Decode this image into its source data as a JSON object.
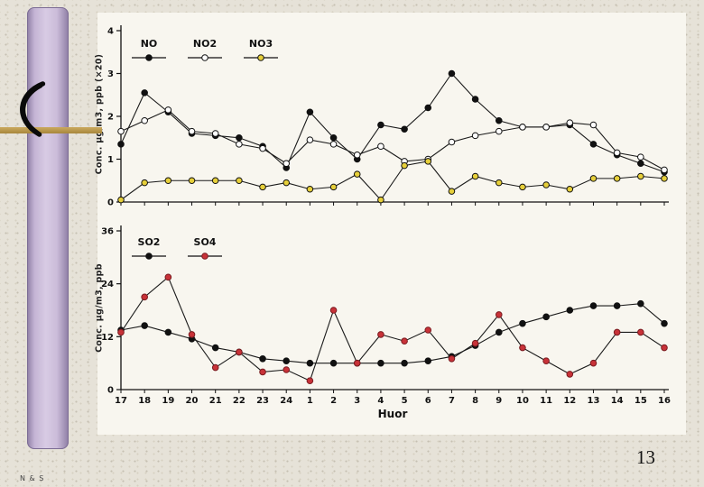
{
  "page": {
    "page_number": "13",
    "footer_left": "N & S"
  },
  "colors": {
    "slide_background": "#e6e2d8",
    "ribbon_lavender": "#cbbcd9",
    "gold_bar": "#b2904a",
    "no3_yellow": "#e6cf3a",
    "so4_red": "#c83238",
    "line_black": "#1a1a1a"
  },
  "chart_data": [
    {
      "type": "line",
      "title": "",
      "ylabel": "Conc. μg/m3, ppb (×20)",
      "xlabel": "",
      "ylim": [
        0,
        4
      ],
      "yticks": [
        0,
        1,
        2,
        3,
        4
      ],
      "grid": false,
      "legend_position": "top-left-inside",
      "categories": [
        "17",
        "18",
        "19",
        "20",
        "21",
        "22",
        "23",
        "24",
        "1",
        "2",
        "3",
        "4",
        "5",
        "6",
        "7",
        "8",
        "9",
        "10",
        "11",
        "12",
        "13",
        "14",
        "15",
        "16"
      ],
      "series": [
        {
          "name": "NO",
          "marker_fill": "#111111",
          "marker_stroke": "#111111",
          "values": [
            1.35,
            2.55,
            2.1,
            1.6,
            1.55,
            1.5,
            1.3,
            0.8,
            2.1,
            1.5,
            1.0,
            1.8,
            1.7,
            2.2,
            3.0,
            2.4,
            1.9,
            1.75,
            1.75,
            1.8,
            1.35,
            1.1,
            0.9,
            0.7
          ]
        },
        {
          "name": "NO2",
          "marker_fill": "#ffffff",
          "marker_stroke": "#111111",
          "values": [
            1.65,
            1.9,
            2.15,
            1.65,
            1.6,
            1.35,
            1.25,
            0.9,
            1.45,
            1.35,
            1.1,
            1.3,
            0.95,
            1.0,
            1.4,
            1.55,
            1.65,
            1.75,
            1.75,
            1.85,
            1.8,
            1.15,
            1.05,
            0.75
          ]
        },
        {
          "name": "NO3",
          "marker_fill": "#e6cf3a",
          "marker_stroke": "#111111",
          "values": [
            0.05,
            0.45,
            0.5,
            0.5,
            0.5,
            0.5,
            0.35,
            0.45,
            0.3,
            0.35,
            0.65,
            0.05,
            0.85,
            0.95,
            0.25,
            0.6,
            0.45,
            0.35,
            0.4,
            0.3,
            0.55,
            0.55,
            0.6,
            0.55
          ]
        }
      ]
    },
    {
      "type": "line",
      "title": "",
      "ylabel": "Conc. μg/m3, ppb",
      "xlabel": "Huor",
      "ylim": [
        0,
        36
      ],
      "yticks": [
        0,
        12,
        24,
        36
      ],
      "grid": false,
      "legend_position": "top-left-inside",
      "categories": [
        "17",
        "18",
        "19",
        "20",
        "21",
        "22",
        "23",
        "24",
        "1",
        "2",
        "3",
        "4",
        "5",
        "6",
        "7",
        "8",
        "9",
        "10",
        "11",
        "12",
        "13",
        "14",
        "15",
        "16"
      ],
      "series": [
        {
          "name": "SO2",
          "marker_fill": "#111111",
          "marker_stroke": "#111111",
          "values": [
            13.5,
            14.5,
            13,
            11.5,
            9.5,
            8.5,
            7,
            6.5,
            6,
            6,
            6,
            6,
            6,
            6.5,
            7.5,
            10,
            13,
            15,
            16.5,
            18,
            19,
            19,
            19.5,
            15
          ]
        },
        {
          "name": "SO4",
          "marker_fill": "#c83238",
          "marker_stroke": "#7a1b20",
          "values": [
            13,
            21,
            25.5,
            12.5,
            5,
            8.5,
            4,
            4.5,
            2,
            18,
            6,
            12.5,
            11,
            13.5,
            7,
            10.5,
            17,
            9.5,
            6.5,
            3.5,
            6,
            13,
            13,
            9.5
          ]
        }
      ]
    }
  ]
}
